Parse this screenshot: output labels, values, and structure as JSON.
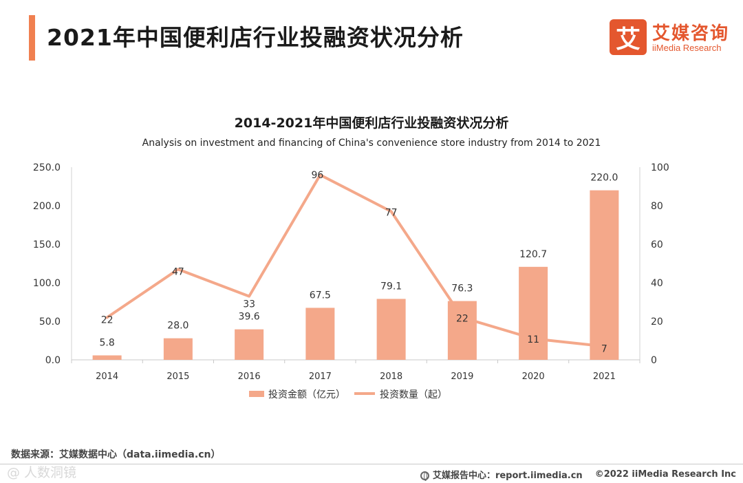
{
  "header": {
    "title": "2021年中国便利店行业投融资状况分析",
    "logo_mark": "艾",
    "logo_cn": "艾媒咨询",
    "logo_en": "iiMedia Research"
  },
  "chart_data": {
    "type": "bar",
    "title": "2014-2021年中国便利店行业投融资状况分析",
    "subtitle": "Analysis on investment and financing of China's convenience store industry from 2014 to 2021",
    "categories": [
      "2014",
      "2015",
      "2016",
      "2017",
      "2018",
      "2019",
      "2020",
      "2021"
    ],
    "series": [
      {
        "name": "投资金额（亿元）",
        "type": "bar",
        "axis": "left",
        "color": "#f4a88a",
        "values": [
          5.8,
          28.0,
          39.6,
          67.5,
          79.1,
          76.3,
          120.7,
          220.0
        ],
        "labels": [
          "5.8",
          "28.0",
          "39.6",
          "67.5",
          "79.1",
          "76.3",
          "120.7",
          "220.0"
        ]
      },
      {
        "name": "投资数量（起）",
        "type": "line",
        "axis": "right",
        "color": "#f4a88a",
        "values": [
          22,
          47,
          33,
          96,
          77,
          22,
          11,
          7
        ],
        "labels": [
          "22",
          "47",
          "33",
          "96",
          "77",
          "22",
          "11",
          "7"
        ]
      }
    ],
    "y_left": {
      "range": [
        0,
        250
      ],
      "ticks": [
        "0.0",
        "50.0",
        "100.0",
        "150.0",
        "200.0",
        "250.0"
      ]
    },
    "y_right": {
      "range": [
        0,
        100
      ],
      "ticks": [
        "0",
        "20",
        "40",
        "60",
        "80",
        "100"
      ]
    },
    "grid": false,
    "legend_position": "bottom"
  },
  "footer": {
    "source": "数据来源：艾媒数据中心（data.iimedia.cn）",
    "report": "艾媒报告中心：report.iimedia.cn",
    "copyright": "©2022  iiMedia Research  Inc",
    "watermark": "@ 人数洞镜"
  }
}
